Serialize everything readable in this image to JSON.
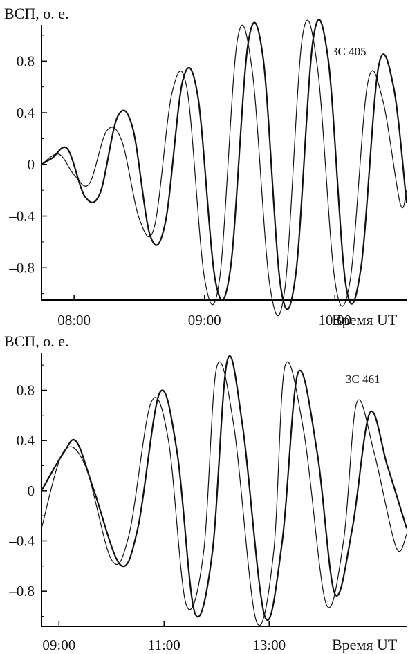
{
  "chart_data": [
    {
      "type": "line",
      "ylabel": "ВСП, о. е.",
      "xlabel": "Время UT",
      "annotation": "3C 405",
      "ylim": [
        -1.05,
        1.08
      ],
      "yticks": [
        0.8,
        0.4,
        0,
        -0.4,
        -0.8
      ],
      "ytick_labels": [
        "0.8",
        "0.4",
        "0",
        "–0.4",
        "–0.8"
      ],
      "xlim": [
        "07:45",
        "10:33"
      ],
      "xticks": [
        "08:00",
        "09:00",
        "10:00"
      ],
      "xtick_labels": [
        "08:00",
        "09:00",
        "10:00"
      ],
      "series": [
        {
          "style": "thin",
          "points": [
            [
              "07:45",
              0.0
            ],
            [
              "07:53",
              0.08
            ],
            [
              "08:00",
              -0.08
            ],
            [
              "08:07",
              -0.15
            ],
            [
              "08:15",
              0.26
            ],
            [
              "08:22",
              0.18
            ],
            [
              "08:30",
              -0.42
            ],
            [
              "08:37",
              -0.48
            ],
            [
              "08:45",
              0.55
            ],
            [
              "08:52",
              0.58
            ],
            [
              "09:00",
              -0.88
            ],
            [
              "09:07",
              -0.88
            ],
            [
              "09:15",
              0.95
            ],
            [
              "09:22",
              0.72
            ],
            [
              "09:30",
              -0.93
            ],
            [
              "09:37",
              -0.96
            ],
            [
              "09:45",
              0.98
            ],
            [
              "09:52",
              0.75
            ],
            [
              "10:00",
              -0.9
            ],
            [
              "10:07",
              -0.9
            ],
            [
              "10:15",
              0.62
            ],
            [
              "10:22",
              0.5
            ],
            [
              "10:30",
              -0.3
            ],
            [
              "10:33",
              -0.2
            ]
          ]
        },
        {
          "style": "bold",
          "points": [
            [
              "07:45",
              0.0
            ],
            [
              "07:50",
              0.05
            ],
            [
              "07:57",
              0.12
            ],
            [
              "08:05",
              -0.25
            ],
            [
              "08:12",
              -0.22
            ],
            [
              "08:20",
              0.37
            ],
            [
              "08:27",
              0.28
            ],
            [
              "08:35",
              -0.55
            ],
            [
              "08:42",
              -0.45
            ],
            [
              "08:50",
              0.65
            ],
            [
              "08:57",
              0.52
            ],
            [
              "09:05",
              -0.9
            ],
            [
              "09:12",
              -0.8
            ],
            [
              "09:20",
              0.93
            ],
            [
              "09:27",
              0.82
            ],
            [
              "09:35",
              -0.94
            ],
            [
              "09:42",
              -0.85
            ],
            [
              "09:50",
              0.97
            ],
            [
              "09:57",
              0.8
            ],
            [
              "10:05",
              -0.93
            ],
            [
              "10:12",
              -0.8
            ],
            [
              "10:20",
              0.75
            ],
            [
              "10:27",
              0.6
            ],
            [
              "10:33",
              -0.3
            ]
          ]
        }
      ]
    },
    {
      "type": "line",
      "ylabel": "ВСП, о. е.",
      "xlabel": "Время UT",
      "annotation": "3C 461",
      "ylim": [
        -1.08,
        1.1
      ],
      "yticks": [
        0.8,
        0.4,
        0,
        -0.4,
        -0.8
      ],
      "ytick_labels": [
        "0.8",
        "0.4",
        "0",
        "–0.4",
        "–0.8"
      ],
      "xlim": [
        "08:40",
        "15:37"
      ],
      "xticks": [
        "09:00",
        "11:00",
        "13:00"
      ],
      "xtick_labels": [
        "09:00",
        "11:00",
        "13:00"
      ],
      "series": [
        {
          "style": "thin",
          "points": [
            [
              "08:40",
              -0.3
            ],
            [
              "09:05",
              0.31
            ],
            [
              "09:30",
              0.2
            ],
            [
              "10:00",
              -0.55
            ],
            [
              "10:20",
              -0.35
            ],
            [
              "10:45",
              0.7
            ],
            [
              "11:05",
              0.4
            ],
            [
              "11:25",
              -0.9
            ],
            [
              "11:45",
              -0.5
            ],
            [
              "12:00",
              0.98
            ],
            [
              "12:20",
              0.5
            ],
            [
              "12:45",
              -1.03
            ],
            [
              "13:05",
              -0.5
            ],
            [
              "13:18",
              0.99
            ],
            [
              "13:40",
              0.45
            ],
            [
              "14:05",
              -0.9
            ],
            [
              "14:25",
              -0.4
            ],
            [
              "14:40",
              0.7
            ],
            [
              "15:00",
              0.3
            ],
            [
              "15:25",
              -0.45
            ],
            [
              "15:37",
              -0.35
            ]
          ]
        },
        {
          "style": "bold",
          "points": [
            [
              "08:40",
              0.0
            ],
            [
              "09:05",
              0.3
            ],
            [
              "09:20",
              0.39
            ],
            [
              "09:40",
              0.0
            ],
            [
              "10:10",
              -0.59
            ],
            [
              "10:30",
              -0.3
            ],
            [
              "10:55",
              0.78
            ],
            [
              "11:15",
              0.3
            ],
            [
              "11:35",
              -0.97
            ],
            [
              "11:55",
              -0.5
            ],
            [
              "12:12",
              1.03
            ],
            [
              "12:30",
              0.5
            ],
            [
              "12:55",
              -1.0
            ],
            [
              "13:15",
              -0.4
            ],
            [
              "13:33",
              0.94
            ],
            [
              "13:55",
              0.3
            ],
            [
              "14:15",
              -0.82
            ],
            [
              "14:35",
              -0.3
            ],
            [
              "14:55",
              0.62
            ],
            [
              "15:15",
              0.2
            ],
            [
              "15:37",
              -0.3
            ]
          ]
        }
      ]
    }
  ]
}
